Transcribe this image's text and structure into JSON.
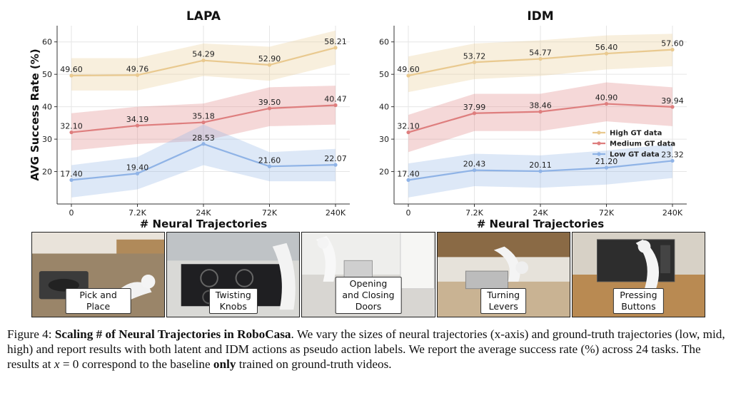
{
  "figure": {
    "label": "Figure 4:",
    "bold_title": "Scaling # of Neural Trajectories in RoboCasa",
    "text_1": ". We vary the sizes of neural trajectories (x-axis) and ground-truth trajectories (low, mid, high) and report results with both latent and IDM actions as pseudo action labels. We report the average success rate (%) across 24 tasks. The results at ",
    "math_x": "x",
    "text_2": " = 0 correspond to the baseline ",
    "bold_only": "only",
    "text_3": " trained on ground-truth videos."
  },
  "thumbnails": [
    {
      "label": "Pick and Place"
    },
    {
      "label": "Twisting\nKnobs"
    },
    {
      "label": "Opening and Closing\nDoors"
    },
    {
      "label": "Turning\nLevers"
    },
    {
      "label": "Pressing\nButtons"
    }
  ],
  "chart_data": [
    {
      "type": "line",
      "title": "LAPA",
      "xlabel": "# Neural Trajectories",
      "ylabel": "AVG Success Rate (%)",
      "categories": [
        "0",
        "7.2K",
        "24K",
        "72K",
        "240K"
      ],
      "ylim": [
        10,
        65
      ],
      "yticks": [
        20,
        30,
        40,
        50,
        60
      ],
      "grid": true,
      "legend": "none",
      "series": [
        {
          "name": "High GT data",
          "color": "#e9c98f",
          "values": [
            49.6,
            49.76,
            54.29,
            52.9,
            58.21
          ],
          "labels": [
            "49.60",
            "49.76",
            "54.29",
            "52.90",
            "58.21"
          ],
          "lower": [
            45.0,
            45.0,
            49.5,
            48.0,
            53.0
          ],
          "upper": [
            55.0,
            55.0,
            59.5,
            58.5,
            63.5
          ]
        },
        {
          "name": "Medium GT data",
          "color": "#de7e7e",
          "values": [
            32.1,
            34.19,
            35.18,
            39.5,
            40.47
          ],
          "labels": [
            "32.10",
            "34.19",
            "35.18",
            "39.50",
            "40.47"
          ],
          "lower": [
            26.5,
            28.5,
            29.5,
            34.0,
            34.5
          ],
          "upper": [
            38.0,
            40.0,
            41.0,
            46.0,
            46.5
          ]
        },
        {
          "name": "Low GT data",
          "color": "#8fb3e6",
          "values": [
            17.4,
            19.4,
            28.53,
            21.6,
            22.07
          ],
          "labels": [
            "17.40",
            "19.40",
            "28.53",
            "21.60",
            "22.07"
          ],
          "lower": [
            12.0,
            14.5,
            22.0,
            17.0,
            17.0
          ],
          "upper": [
            22.0,
            24.5,
            34.5,
            26.0,
            27.0
          ]
        }
      ]
    },
    {
      "type": "line",
      "title": "IDM",
      "xlabel": "# Neural Trajectories",
      "ylabel": "",
      "categories": [
        "0",
        "7.2K",
        "24K",
        "72K",
        "240K"
      ],
      "ylim": [
        10,
        65
      ],
      "yticks": [
        20,
        30,
        40,
        50,
        60
      ],
      "grid": true,
      "legend": "center-right",
      "series": [
        {
          "name": "High GT data",
          "color": "#e9c98f",
          "values": [
            49.6,
            53.72,
            54.77,
            56.4,
            57.6
          ],
          "labels": [
            "49.60",
            "53.72",
            "54.77",
            "56.40",
            "57.60"
          ],
          "lower": [
            44.5,
            48.5,
            49.5,
            51.5,
            52.5
          ],
          "upper": [
            55.5,
            59.5,
            60.5,
            62.0,
            62.5
          ]
        },
        {
          "name": "Medium GT data",
          "color": "#de7e7e",
          "values": [
            32.1,
            37.99,
            38.46,
            40.9,
            39.94
          ],
          "labels": [
            "32.10",
            "37.99",
            "38.46",
            "40.90",
            "39.94"
          ],
          "lower": [
            26.0,
            32.5,
            32.5,
            35.5,
            34.0
          ],
          "upper": [
            37.5,
            44.0,
            44.0,
            47.5,
            46.0
          ]
        },
        {
          "name": "Low GT data",
          "color": "#8fb3e6",
          "values": [
            17.4,
            20.43,
            20.11,
            21.2,
            23.32
          ],
          "labels": [
            "17.40",
            "20.43",
            "20.11",
            "21.20",
            "23.32"
          ],
          "lower": [
            12.0,
            15.5,
            15.0,
            16.0,
            18.0
          ],
          "upper": [
            22.5,
            25.5,
            25.0,
            26.5,
            28.5
          ]
        }
      ]
    }
  ]
}
